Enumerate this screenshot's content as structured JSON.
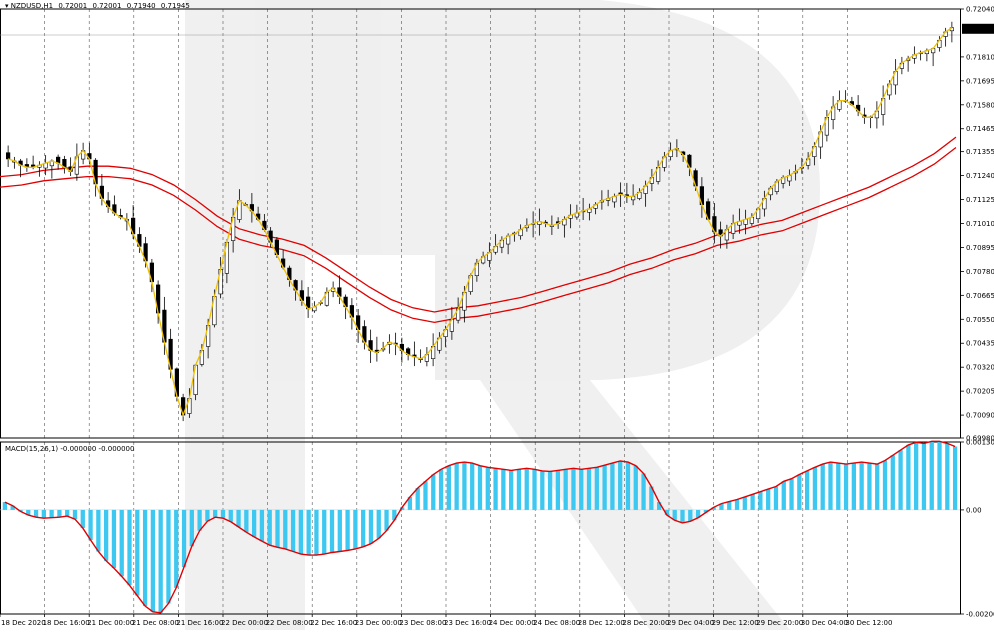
{
  "chart_data": [
    {
      "type": "candlestick",
      "symbol": "NZDUSD,H1",
      "ohlc_readout": [
        "0.72001",
        "0.72001",
        "0.71940",
        "0.71945"
      ],
      "current_price": "0.71945",
      "y_ticks": [
        "0.72040",
        "0.71810",
        "0.71695",
        "0.71580",
        "0.71465",
        "0.71355",
        "0.71240",
        "0.71125",
        "0.71010",
        "0.70895",
        "0.70780",
        "0.70665",
        "0.70550",
        "0.70435",
        "0.70320",
        "0.70205",
        "0.70090",
        "0.69980"
      ],
      "ylim": [
        0.6998,
        0.7204
      ],
      "x_ticks": [
        "18 Dec 2020",
        "18 Dec 16:00",
        "21 Dec 00:00",
        "21 Dec 08:00",
        "21 Dec 16:00",
        "22 Dec 00:00",
        "22 Dec 08:00",
        "22 Dec 16:00",
        "23 Dec 00:00",
        "23 Dec 08:00",
        "23 Dec 16:00",
        "24 Dec 00:00",
        "24 Dec 08:00",
        "28 Dec 12:00",
        "28 Dec 20:00",
        "29 Dec 04:00",
        "29 Dec 12:00",
        "29 Dec 20:00",
        "30 Dec 04:00",
        "30 Dec 12:00"
      ],
      "close_path": [
        0.7132,
        0.7131,
        0.7129,
        0.7128,
        0.7128,
        0.7129,
        0.713,
        0.7131,
        0.713,
        0.7128,
        0.7126,
        0.7133,
        0.7136,
        0.7132,
        0.712,
        0.7113,
        0.7109,
        0.7106,
        0.7104,
        0.7103,
        0.7096,
        0.709,
        0.7083,
        0.7073,
        0.7058,
        0.7044,
        0.7031,
        0.7018,
        0.7009,
        0.7017,
        0.7033,
        0.704,
        0.7052,
        0.7066,
        0.7079,
        0.7092,
        0.7104,
        0.7112,
        0.711,
        0.7107,
        0.7103,
        0.7098,
        0.7092,
        0.7086,
        0.708,
        0.7074,
        0.7069,
        0.7064,
        0.706,
        0.7061,
        0.7063,
        0.7068,
        0.707,
        0.7066,
        0.7061,
        0.7056,
        0.705,
        0.7044,
        0.704,
        0.7039,
        0.7041,
        0.7044,
        0.7043,
        0.704,
        0.7038,
        0.7037,
        0.7036,
        0.7038,
        0.7042,
        0.7046,
        0.705,
        0.7055,
        0.706,
        0.7068,
        0.7076,
        0.7082,
        0.7085,
        0.7087,
        0.709,
        0.7093,
        0.7095,
        0.7096,
        0.7098,
        0.71,
        0.7101,
        0.7102,
        0.7101,
        0.71,
        0.7101,
        0.7103,
        0.7105,
        0.7106,
        0.7107,
        0.7108,
        0.711,
        0.7112,
        0.7113,
        0.7114,
        0.7115,
        0.7114,
        0.7114,
        0.7116,
        0.7119,
        0.7123,
        0.7128,
        0.7133,
        0.7136,
        0.7137,
        0.7134,
        0.7128,
        0.7119,
        0.711,
        0.7103,
        0.7097,
        0.7095,
        0.7098,
        0.7101,
        0.7102,
        0.7103,
        0.7104,
        0.7108,
        0.7113,
        0.7118,
        0.7121,
        0.7123,
        0.7124,
        0.7126,
        0.7128,
        0.7132,
        0.7138,
        0.7145,
        0.7152,
        0.7157,
        0.716,
        0.716,
        0.7158,
        0.7155,
        0.7152,
        0.7152,
        0.7155,
        0.7161,
        0.7168,
        0.7174,
        0.7178,
        0.718,
        0.7182,
        0.7183,
        0.7184,
        0.7185,
        0.7189,
        0.7193,
        0.7195
      ],
      "moving_averages": [
        {
          "color": "#f0c000",
          "role": "fast"
        },
        {
          "color": "#e00000",
          "role": "slow"
        },
        {
          "color": "#e00000",
          "role": "slow"
        }
      ],
      "slow_ma": [
        0.7121,
        0.7122,
        0.7124,
        0.7125,
        0.7126,
        0.7126,
        0.7125,
        0.7122,
        0.7117,
        0.711,
        0.7102,
        0.7096,
        0.7093,
        0.7091,
        0.7088,
        0.7082,
        0.7075,
        0.7068,
        0.7062,
        0.7058,
        0.7056,
        0.7058,
        0.7059,
        0.7061,
        0.7063,
        0.7066,
        0.7069,
        0.7072,
        0.7075,
        0.7079,
        0.7082,
        0.7086,
        0.7089,
        0.7093,
        0.7095,
        0.7098,
        0.71,
        0.7104,
        0.7108,
        0.7112,
        0.7116,
        0.7121,
        0.7126,
        0.7132,
        0.714
      ],
      "slow_ma_offset": 0.00025
    },
    {
      "type": "bar",
      "title": "MACD(15,26,1) -0.000000 -0.000000",
      "y_ticks": [
        "0.001306",
        "0.00",
        "-0.002003"
      ],
      "ylim": [
        -0.002003,
        0.001306
      ],
      "bar_color": "#3cc8f0",
      "signal_color": "#e00000",
      "values": [
        0.00015,
        8e-05,
        -3e-05,
        -0.0001,
        -0.00014,
        -0.00016,
        -0.00015,
        -0.00014,
        -0.00012,
        -0.00018,
        -0.00035,
        -0.00058,
        -0.0008,
        -0.00098,
        -0.00112,
        -0.00128,
        -0.00145,
        -0.00165,
        -0.00185,
        -0.00196,
        -0.00198,
        -0.0018,
        -0.0015,
        -0.0011,
        -0.0007,
        -0.0004,
        -0.00022,
        -0.00014,
        -0.00016,
        -0.00023,
        -0.00033,
        -0.00043,
        -0.00052,
        -0.0006,
        -0.00068,
        -0.00072,
        -0.00075,
        -0.0008,
        -0.00085,
        -0.00087,
        -0.00087,
        -0.00085,
        -0.00082,
        -0.0008,
        -0.00078,
        -0.00075,
        -0.00071,
        -0.00065,
        -0.00055,
        -0.0004,
        -0.0002,
        5e-05,
        0.00025,
        0.00042,
        0.00055,
        0.00068,
        0.00078,
        0.00085,
        0.0009,
        0.00092,
        0.0009,
        0.00085,
        0.00082,
        0.0008,
        0.00078,
        0.00076,
        0.00078,
        0.0008,
        0.00078,
        0.00075,
        0.00074,
        0.00076,
        0.00078,
        0.0008,
        0.00078,
        0.0008,
        0.00082,
        0.00086,
        0.0009,
        0.00094,
        0.00092,
        0.00085,
        0.0007,
        0.00045,
        0.00015,
        -0.0001,
        -0.0002,
        -0.00025,
        -0.00022,
        -0.00015,
        -5e-05,
        5e-05,
        0.00012,
        0.00016,
        0.0002,
        0.00025,
        0.0003,
        0.00035,
        0.0004,
        0.00045,
        0.00055,
        0.0006,
        0.00068,
        0.00075,
        0.00082,
        0.00088,
        0.00092,
        0.0009,
        0.00088,
        0.0009,
        0.00092,
        0.0009,
        0.00088,
        0.00095,
        0.00105,
        0.00115,
        0.00125,
        0.0013,
        0.00128,
        0.00132,
        0.00132,
        0.00128,
        0.00122
      ]
    }
  ]
}
